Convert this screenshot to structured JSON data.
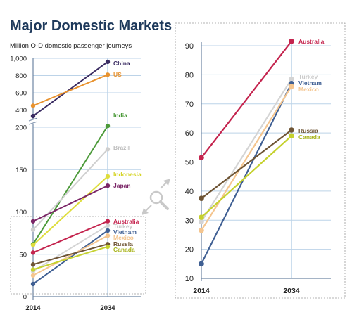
{
  "header": {
    "title": "Major Domestic Markets",
    "subtitle": "Million O-D domestic passenger journeys"
  },
  "colors": {
    "China": "#3b2d63",
    "US": "#e8922e",
    "India": "#4c9a3a",
    "Brazil": "#cfcfcf",
    "Indonesia": "#dedd3c",
    "Japan": "#7a2566",
    "Australia": "#c4244e",
    "Turkey": "#d4d4d4",
    "Vietnam": "#3f5f93",
    "Mexico": "#f4c58f",
    "Russia": "#6e5434",
    "Canada": "#c5d12e",
    "grid": "#bcd3e8",
    "axis": "#6f86a3",
    "title": "#1f3a5c"
  },
  "chart_data": [
    {
      "type": "line",
      "x": [
        "2014",
        "2034"
      ],
      "y_ticks": [
        "1,000",
        "800",
        "600",
        "400",
        "200",
        "150",
        "100",
        "50",
        "0"
      ],
      "series": [
        {
          "name": "China",
          "values": [
            330,
            960
          ]
        },
        {
          "name": "US",
          "values": [
            450,
            810
          ]
        },
        {
          "name": "India",
          "values": [
            62,
            215
          ]
        },
        {
          "name": "Brazil",
          "values": [
            79,
            174
          ]
        },
        {
          "name": "Indonesia",
          "values": [
            61,
            142
          ]
        },
        {
          "name": "Japan",
          "values": [
            89,
            131
          ]
        },
        {
          "name": "Australia",
          "values": [
            52,
            89
          ]
        },
        {
          "name": "Turkey",
          "values": [
            30,
            84
          ]
        },
        {
          "name": "Vietnam",
          "values": [
            15,
            78
          ]
        },
        {
          "name": "Mexico",
          "values": [
            25,
            72
          ]
        },
        {
          "name": "Russia",
          "values": [
            38,
            62
          ]
        },
        {
          "name": "Canada",
          "values": [
            32,
            59
          ]
        }
      ]
    },
    {
      "type": "line",
      "x": [
        "2014",
        "2034"
      ],
      "y_ticks": [
        "90",
        "80",
        "70",
        "60",
        "50",
        "40",
        "30",
        "20",
        "10"
      ],
      "ylim": [
        10,
        90
      ],
      "series": [
        {
          "name": "Australia",
          "values": [
            51.5,
            91.5
          ]
        },
        {
          "name": "Turkey",
          "values": [
            29.5,
            78.5
          ]
        },
        {
          "name": "Vietnam",
          "values": [
            15,
            77
          ]
        },
        {
          "name": "Mexico",
          "values": [
            26.5,
            76
          ]
        },
        {
          "name": "Russia",
          "values": [
            37.5,
            61
          ]
        },
        {
          "name": "Canada",
          "values": [
            31,
            59
          ]
        }
      ]
    }
  ]
}
